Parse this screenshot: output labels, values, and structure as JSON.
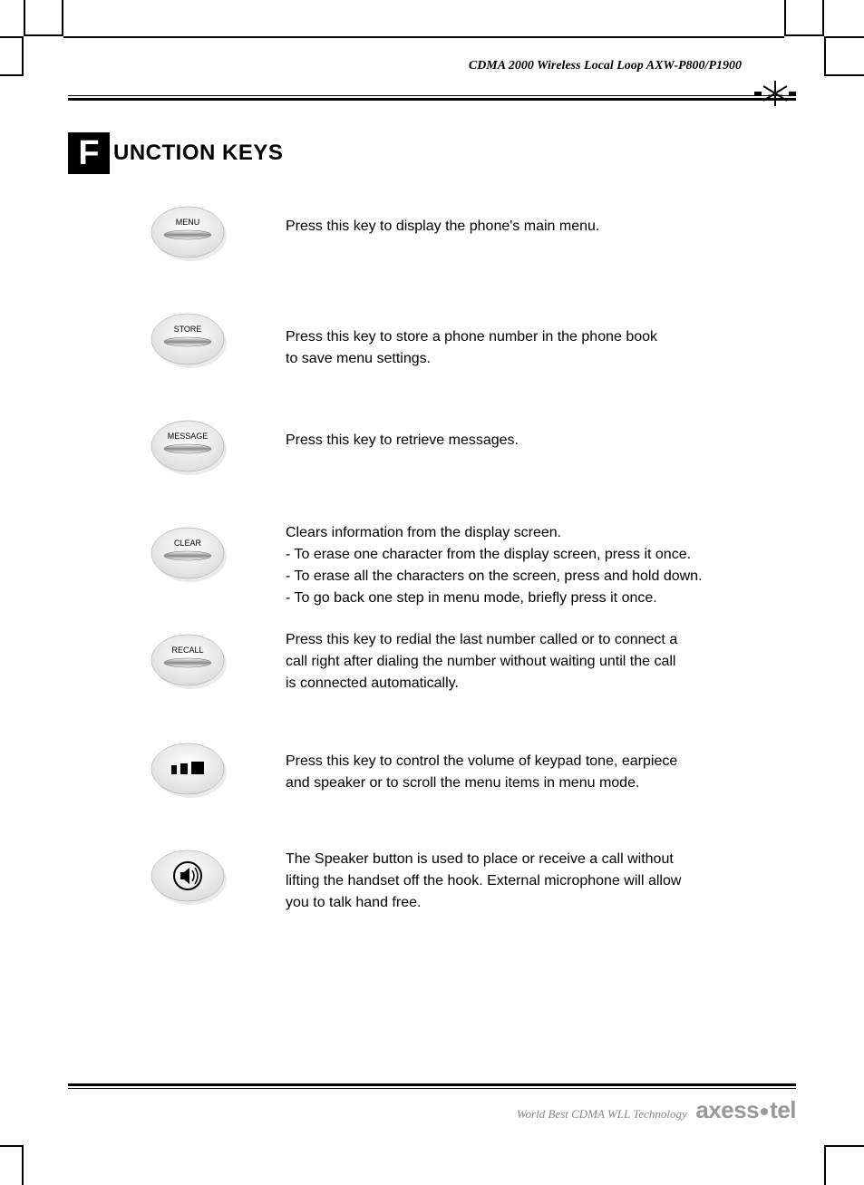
{
  "header": {
    "product_line": "CDMA 2000 Wireless Local Loop AXW-P800/P1900",
    "logo_text": "axess•tel"
  },
  "title": {
    "dropcap": "F",
    "rest": "UNCTION KEYS"
  },
  "keys": [
    {
      "label": "MENU",
      "icon": "pill",
      "description": "Press this key to display the phone's main menu."
    },
    {
      "label": "STORE",
      "icon": "pill",
      "description": "Press this key to store a phone number in the phone book\n to save menu settings."
    },
    {
      "label": "MESSAGE",
      "icon": "pill",
      "description": "Press this key to retrieve messages."
    },
    {
      "label": "CLEAR",
      "icon": "pill",
      "description": "Clears information from the display screen.\n- To erase one character from the display screen, press it once.\n- To erase all the characters on the screen, press and hold down.\n- To go back one step in menu mode, briefly press it once."
    },
    {
      "label": "RECALL",
      "icon": "pill",
      "description": "Press this key to redial the last number called or to connect a\n call right after dialing the number without waiting until the call\n is connected automatically."
    },
    {
      "label": "",
      "icon": "volume-bars",
      "description": "Press this key to control the volume of keypad tone, earpiece\n and speaker or to scroll the menu items in menu mode."
    },
    {
      "label": "",
      "icon": "speaker",
      "description": "The Speaker button is used to place or receive a call without\n lifting the handset off the hook. External microphone will allow\n you to talk hand free."
    }
  ],
  "footer": {
    "slogan": "World Best CDMA WLL Technology",
    "brand": "axess",
    "brand2": "tel"
  },
  "style": {
    "page_bg": "#ffffff",
    "text_color": "#000000",
    "dropcap_bg": "#000000",
    "dropcap_fg": "#ffffff",
    "footer_brand_color": "#999999",
    "rule_color": "#000000",
    "button_label_fontsize": 9,
    "desc_fontsize": 16,
    "title_fontsize": 24
  }
}
